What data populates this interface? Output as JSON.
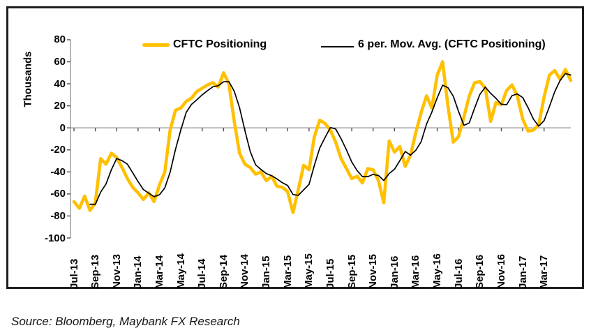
{
  "figure": {
    "source_note": "Source: Bloomberg, Maybank FX Research"
  },
  "chart_data": {
    "type": "line",
    "title": "",
    "ylabel": "Thousands",
    "ylim": [
      -100,
      80
    ],
    "y_ticks": [
      80,
      60,
      40,
      20,
      0,
      -20,
      -40,
      -60,
      -80,
      -100
    ],
    "grid": "horizontal zero line only",
    "legend_position": "top",
    "x_tick_labels": [
      "Jul-13",
      "Sep-13",
      "Nov-13",
      "Jan-14",
      "Mar-14",
      "May-14",
      "Jul-14",
      "Sep-14",
      "Nov-14",
      "Jan-15",
      "Mar-15",
      "May-15",
      "Jul-15",
      "Sep-15",
      "Nov-15",
      "Jan-16",
      "Mar-16",
      "May-16",
      "Jul-16",
      "Sep-16",
      "Nov-16",
      "Jan-17",
      "Mar-17"
    ],
    "x_unit": "semi-monthly points, Jul-2013 to Apr-2017",
    "series": [
      {
        "name": "CFTC Positioning",
        "color": "#FFC000",
        "width": 4.6,
        "values": [
          -67,
          -73,
          -62,
          -75,
          -68,
          -28,
          -33,
          -23,
          -27,
          -36,
          -46,
          -54,
          -59,
          -65,
          -59,
          -67,
          -52,
          -40,
          -2,
          16,
          18,
          24,
          27,
          33,
          36,
          39,
          41,
          37,
          50,
          40,
          6,
          -23,
          -33,
          -36,
          -42,
          -40,
          -48,
          -44,
          -53,
          -54,
          -58,
          -77,
          -56,
          -34,
          -38,
          -8,
          7,
          4,
          -2,
          -13,
          -28,
          -37,
          -46,
          -44,
          -50,
          -37,
          -38,
          -48,
          -68,
          -12,
          -22,
          -17,
          -35,
          -25,
          -4,
          14,
          29,
          18,
          48,
          60,
          20,
          -13,
          -8,
          10,
          29,
          41,
          42,
          36,
          6,
          23,
          21,
          34,
          39,
          29,
          8,
          -3,
          -2,
          3,
          28,
          48,
          52,
          44,
          53,
          43
        ]
      },
      {
        "name": "6 per. Mov. Avg. (CFTC Positioning)",
        "color": "#000000",
        "width": 1.7,
        "values": [
          null,
          null,
          null,
          -69.3,
          -69.5,
          -58.3,
          -51,
          -38,
          -27.8,
          -29.8,
          -33,
          -40.8,
          -48.8,
          -56,
          -59.3,
          -62.5,
          -60.8,
          -54.5,
          -40.3,
          -19.5,
          -2,
          14,
          21.3,
          25.5,
          30,
          33.8,
          37.3,
          38.3,
          41.8,
          42,
          33.3,
          18.3,
          -2.5,
          -21.5,
          -33.5,
          -37.8,
          -41.5,
          -43.5,
          -46.3,
          -49.8,
          -52.3,
          -60.5,
          -61.3,
          -56.3,
          -51.3,
          -34,
          -18.3,
          -8.8,
          0.3,
          -1,
          -9.8,
          -20,
          -31,
          -38.8,
          -44.3,
          -44.3,
          -42.3,
          -43.3,
          -47.8,
          -41.5,
          -37.5,
          -29.8,
          -21.5,
          -24.8,
          -20.3,
          -12.5,
          3.5,
          14.3,
          27.3,
          38.8,
          36.5,
          28.8,
          14.8,
          2.3,
          4.5,
          18,
          30.5,
          37,
          31.3,
          26.8,
          21.5,
          21,
          29.3,
          30.8,
          27.5,
          18.3,
          8,
          1.5,
          6.5,
          19.3,
          32.8,
          43,
          49.3,
          48
        ]
      }
    ]
  }
}
